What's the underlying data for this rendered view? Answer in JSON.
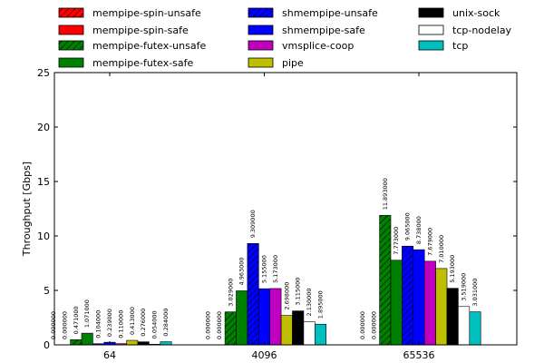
{
  "chart_data": {
    "type": "bar",
    "ylabel": "Throughput [Gbps]",
    "xlabel": "",
    "ylim": [
      0,
      25
    ],
    "yticks": [
      0,
      5,
      10,
      15,
      20,
      25
    ],
    "grid": false,
    "legend_position": "top",
    "categories": [
      "64",
      "4096",
      "65536"
    ],
    "series": [
      {
        "name": "mempipe-spin-unsafe",
        "color": "#ff0000",
        "hatch": true,
        "values": [
          0.0,
          0.0,
          0.0
        ],
        "labels": [
          "0.000000",
          "0.000000",
          "0.000000"
        ]
      },
      {
        "name": "mempipe-spin-safe",
        "color": "#ff0000",
        "hatch": false,
        "values": [
          0.0,
          0.0,
          0.0
        ],
        "labels": [
          "0.000000",
          "0.000000",
          "0.000000"
        ]
      },
      {
        "name": "mempipe-futex-unsafe",
        "color": "#008000",
        "hatch": true,
        "values": [
          0.471,
          3.029,
          11.893
        ],
        "labels": [
          "0.471000",
          "3.029000",
          "11.893000"
        ]
      },
      {
        "name": "mempipe-futex-safe",
        "color": "#008000",
        "hatch": false,
        "values": [
          1.071,
          4.963,
          7.773
        ],
        "labels": [
          "1.071000",
          "4.963000",
          "7.773000"
        ]
      },
      {
        "name": "shmempipe-unsafe",
        "color": "#0000ff",
        "hatch": true,
        "values": [
          0.104,
          9.309,
          9.065
        ],
        "labels": [
          "0.104000",
          "9.309000",
          "9.065000"
        ]
      },
      {
        "name": "shmempipe-safe",
        "color": "#0000ff",
        "hatch": false,
        "values": [
          0.239,
          5.155,
          8.738
        ],
        "labels": [
          "0.239000",
          "5.155000",
          "8.738000"
        ]
      },
      {
        "name": "vmsplice-coop",
        "color": "#bf00bf",
        "hatch": false,
        "values": [
          0.11,
          5.173,
          7.679
        ],
        "labels": [
          "0.110000",
          "5.173000",
          "7.679000"
        ]
      },
      {
        "name": "pipe",
        "color": "#bfbf00",
        "hatch": false,
        "values": [
          0.413,
          2.698,
          7.01
        ],
        "labels": [
          "0.413000",
          "2.698000",
          "7.010000"
        ]
      },
      {
        "name": "unix-sock",
        "color": "#000000",
        "hatch": false,
        "values": [
          0.276,
          3.115,
          5.193
        ],
        "labels": [
          "0.276000",
          "3.115000",
          "5.193000"
        ]
      },
      {
        "name": "tcp-nodelay",
        "color": "#ffffff",
        "hatch": false,
        "values": [
          0.054,
          2.13,
          3.519
        ],
        "labels": [
          "0.054000",
          "2.130000",
          "3.519000"
        ]
      },
      {
        "name": "tcp",
        "color": "#00bfbf",
        "hatch": false,
        "values": [
          0.284,
          1.895,
          3.031
        ],
        "labels": [
          "0.284000",
          "1.895000",
          "3.031000"
        ]
      }
    ]
  }
}
